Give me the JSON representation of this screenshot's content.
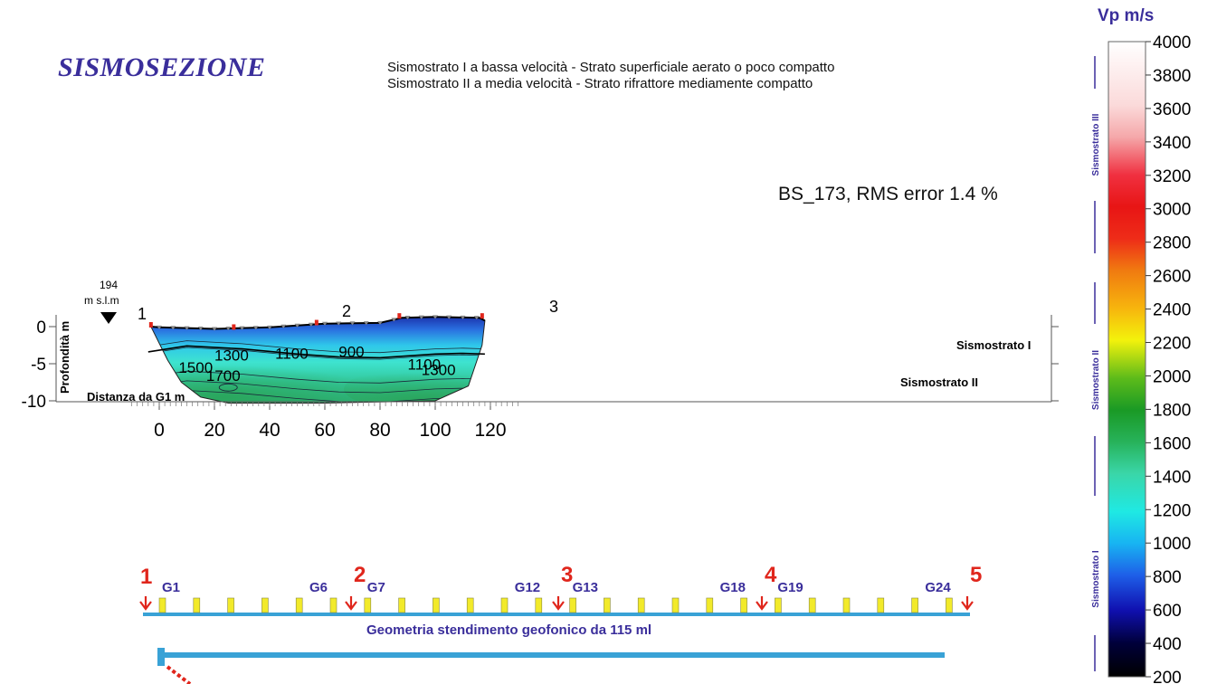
{
  "header": {
    "title": "SISMOSEZIONE",
    "legend": [
      {
        "name": "Sismostrato I a bassa velocità",
        "desc": "- Strato superficiale aerato o poco compatto"
      },
      {
        "name": "Sismostrato II a media velocità",
        "desc": "- Strato rifrattore mediamente compatto"
      }
    ],
    "rms_label": "BS_173,   RMS error 1.4 %"
  },
  "section": {
    "elevation_value": "194",
    "elevation_unit": "m s.l.m",
    "depth_axis_label": "Profondità m",
    "distance_label": "Distanza da G1   m",
    "layer_labels": [
      "Sismostrato I",
      "Sismostrato II"
    ],
    "shot_markers": [
      "1",
      "2",
      "3"
    ]
  },
  "chart_data": {
    "type": "heatmap",
    "xlabel": "Distanza da G1   m",
    "ylabel": "Profondità m",
    "xlim": [
      -10,
      130
    ],
    "ylim": [
      -11,
      2
    ],
    "x_ticks": [
      0,
      20,
      40,
      60,
      80,
      100,
      120
    ],
    "y_ticks": [
      0,
      -5,
      -10
    ],
    "colorbar": {
      "label": "Vp  m/s",
      "min": 200,
      "max": 4000,
      "ticks": [
        4000,
        3800,
        3600,
        3400,
        3200,
        3000,
        2800,
        2600,
        2400,
        2200,
        2000,
        1800,
        1600,
        1400,
        1200,
        1000,
        800,
        600,
        400,
        200
      ],
      "zone_labels": [
        "Sismostrato III",
        "Sismostrato II",
        "Sismostrato I"
      ]
    },
    "contour_labels": [
      {
        "value": "1500",
        "x": 7,
        "y": -6.2
      },
      {
        "value": "1300",
        "x": 20,
        "y": -4.6
      },
      {
        "value": "1700",
        "x": 17,
        "y": -7.3
      },
      {
        "value": "1100",
        "x": 42,
        "y": -4.3
      },
      {
        "value": "900",
        "x": 65,
        "y": -4.1
      },
      {
        "value": "1100",
        "x": 90,
        "y": -5.8
      },
      {
        "value": "1300",
        "x": 95,
        "y": -6.5
      }
    ],
    "surface_profile": [
      [
        -3,
        0.0
      ],
      [
        0,
        -0.1
      ],
      [
        20,
        -0.3
      ],
      [
        40,
        -0.1
      ],
      [
        60,
        0.4
      ],
      [
        80,
        0.5
      ],
      [
        88,
        1.2
      ],
      [
        100,
        1.3
      ],
      [
        116,
        1.2
      ],
      [
        118,
        0.8
      ]
    ],
    "bottom_profile": [
      [
        -3,
        0.0
      ],
      [
        3,
        -4.5
      ],
      [
        8,
        -7.5
      ],
      [
        15,
        -9.5
      ],
      [
        25,
        -10.3
      ],
      [
        60,
        -10.3
      ],
      [
        100,
        -10.0
      ],
      [
        112,
        -8.0
      ],
      [
        117,
        -2.5
      ],
      [
        118,
        0.8
      ]
    ],
    "layer_boundary": [
      [
        -4,
        -3.4
      ],
      [
        10,
        -2.6
      ],
      [
        30,
        -3.0
      ],
      [
        50,
        -3.7
      ],
      [
        65,
        -4.1
      ],
      [
        80,
        -4.2
      ],
      [
        100,
        -3.7
      ],
      [
        110,
        -3.6
      ],
      [
        118,
        -3.7
      ]
    ]
  },
  "geometry": {
    "caption": "Geometria stendimento geofonico da 115 ml",
    "shots": [
      "1",
      "2",
      "3",
      "4",
      "5"
    ],
    "geophone_labels": [
      "G1",
      "G6",
      "G7",
      "G12",
      "G13",
      "G18",
      "G19",
      "G24"
    ],
    "geophone_count": 24
  },
  "colors": {
    "title": "#3a2e9b",
    "shot_red": "#e0261c",
    "geo_blue": "#39a2d6",
    "geophone_yellow": "#f2ea2a",
    "label_blue": "#3a2e9b"
  }
}
